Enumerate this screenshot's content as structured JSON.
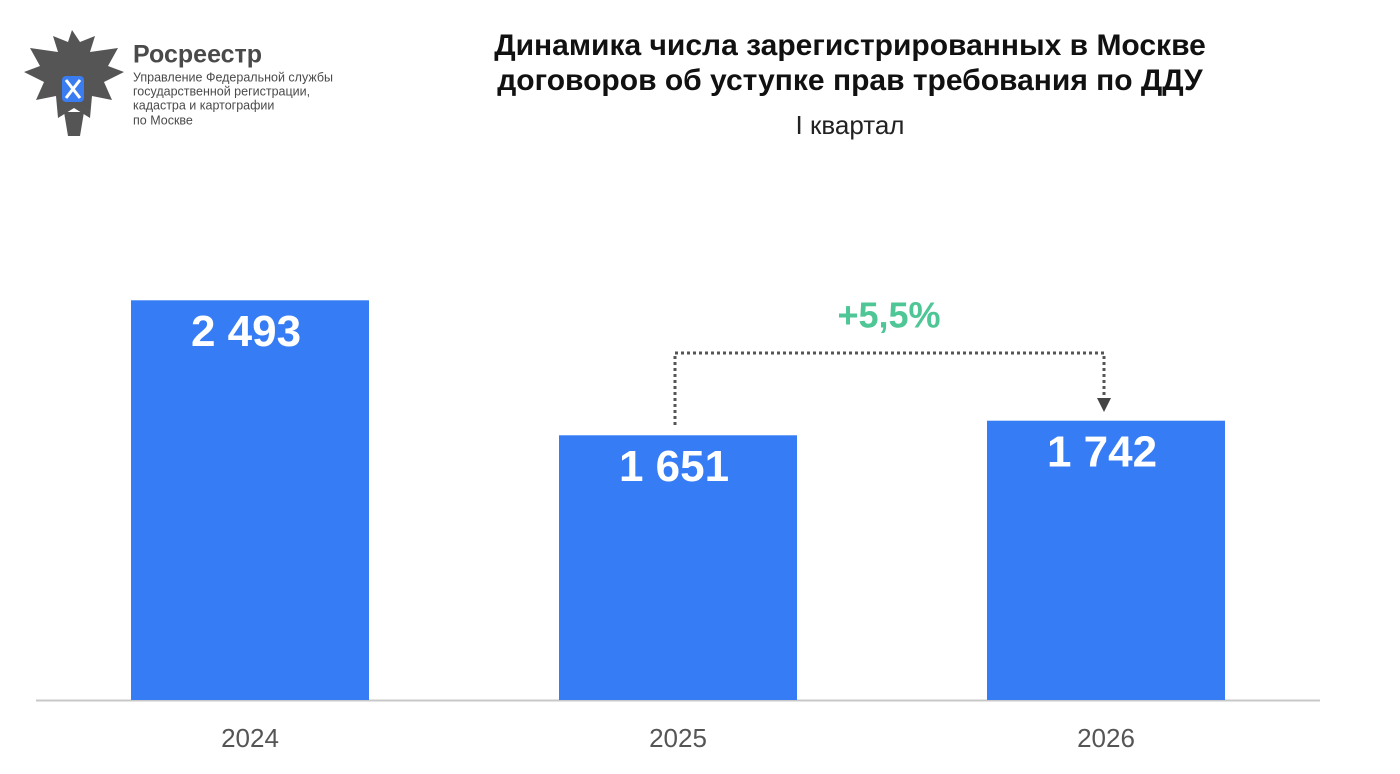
{
  "logo": {
    "name": "Росреестр",
    "lines": [
      "Управление Федеральной службы",
      "государственной регистрации,",
      "кадастра и картографии",
      "по Москве"
    ]
  },
  "chart_data": {
    "type": "bar",
    "title": "Динамика числа зарегистрированных в Москве договоров об уступке прав требования по ДДУ",
    "subtitle": "I квартал",
    "categories": [
      "2024",
      "2025",
      "2026"
    ],
    "values": [
      2493,
      1651,
      1742
    ],
    "value_labels": [
      "2 493",
      "1 651",
      "1 742"
    ],
    "color": "#367cf4",
    "ylim": [
      0,
      3000
    ],
    "annotation": "+5,5%",
    "annotation_color": "#4fc695"
  }
}
